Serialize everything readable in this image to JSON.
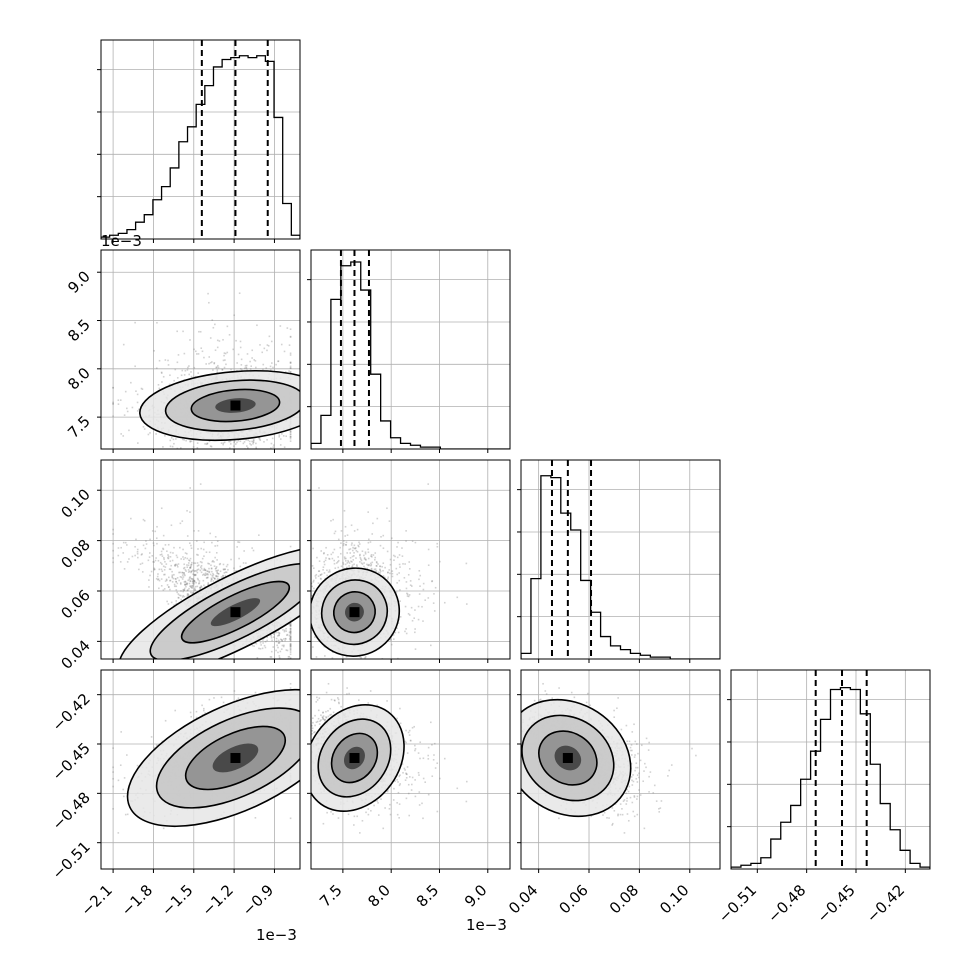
{
  "chart_data": {
    "type": "corner",
    "title": "",
    "grid": true,
    "params": [
      {
        "tick_values": [
          -0.0021,
          -0.0018,
          -0.0015,
          -0.0012,
          -0.0009
        ],
        "tick_labels": [
          "−2.1",
          "−1.8",
          "−1.5",
          "−1.2",
          "−0.9"
        ],
        "offset_label": "1e−3",
        "range": [
          -0.00219,
          -0.00071
        ],
        "quantiles": [
          -0.00144,
          -0.00119,
          -0.00095
        ],
        "hist_max": 0.0
      },
      {
        "tick_values": [
          0.0075,
          0.008,
          0.0085,
          0.009
        ],
        "tick_labels": [
          "7.5",
          "8.0",
          "8.5",
          "9.0"
        ],
        "offset_label": "1e−3",
        "range": [
          0.00717,
          0.00923
        ],
        "quantiles": [
          0.00748,
          0.00762,
          0.00777
        ]
      },
      {
        "tick_values": [
          0.04,
          0.06,
          0.08,
          0.1
        ],
        "tick_labels": [
          "0.04",
          "0.06",
          "0.08",
          "0.10"
        ],
        "offset_label": "",
        "range": [
          0.033,
          0.112
        ],
        "quantiles": [
          0.0453,
          0.0516,
          0.0608
        ]
      },
      {
        "tick_values": [
          -0.51,
          -0.48,
          -0.45,
          -0.42
        ],
        "tick_labels": [
          "−0.51",
          "−0.48",
          "−0.45",
          "−0.42"
        ],
        "offset_label": "",
        "range": [
          -0.526,
          -0.405
        ],
        "quantiles": [
          -0.4745,
          -0.4585,
          -0.4435
        ]
      }
    ],
    "histograms": [
      [
        1,
        2,
        3,
        5,
        9,
        13,
        21,
        28,
        38,
        52,
        60,
        72,
        82,
        92,
        96,
        97,
        98,
        97,
        98,
        95,
        65,
        19,
        2
      ],
      [
        3,
        18,
        80,
        98,
        100,
        85,
        40,
        15,
        6,
        3,
        2,
        1,
        1,
        0,
        0,
        0,
        0,
        0,
        0,
        0
      ],
      [
        3,
        43,
        98,
        97,
        78,
        69,
        42,
        25,
        12,
        7,
        5,
        3,
        2,
        1,
        1,
        0,
        0,
        0,
        0,
        0
      ],
      [
        1,
        2,
        3,
        6,
        16,
        25,
        34,
        48,
        63,
        80,
        96,
        97,
        96,
        83,
        56,
        35,
        21,
        10,
        3,
        1
      ]
    ]
  }
}
